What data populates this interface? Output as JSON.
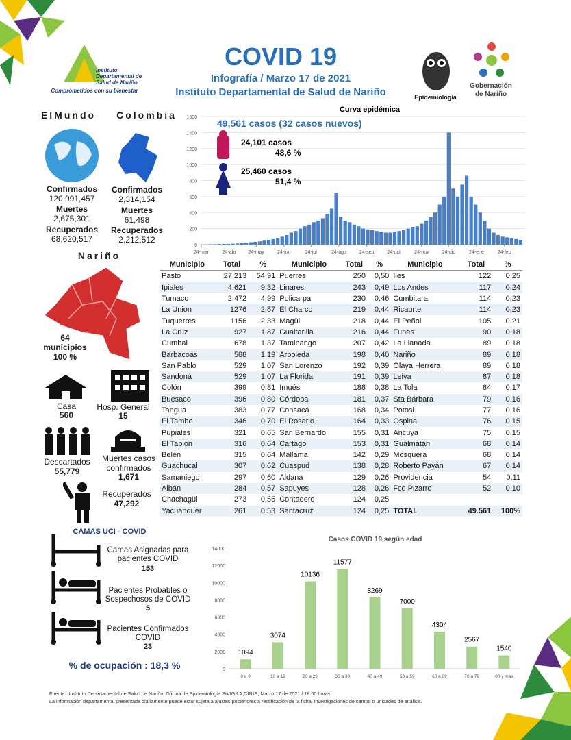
{
  "header": {
    "title": "COVID 19",
    "subtitle": "Infografía / Marzo 17 de 2021",
    "institution": "Instituto Departamental de Salud de Nariño",
    "logo_text": "Instituto Departamental de Salud de Nariño",
    "logo_slogan": "Comprometidos con su bienestar",
    "epi_label": "Epidemiología",
    "gob_label": "Gobernación de Nariño"
  },
  "world": {
    "heading": "ElMundo",
    "stats": [
      {
        "label": "Confirmados",
        "value": "120,991,457"
      },
      {
        "label": "Muertes",
        "value": "2,675,301"
      },
      {
        "label": "Recuperados",
        "value": "68,620,517"
      }
    ]
  },
  "colombia": {
    "heading": "Colombia",
    "stats": [
      {
        "label": "Confirmados",
        "value": "2,314,154"
      },
      {
        "label": "Muertes",
        "value": "61,498"
      },
      {
        "label": "Recuperados",
        "value": "2,212,512"
      }
    ]
  },
  "narino": {
    "heading": "Nariño",
    "count": "64",
    "unit": "municipios",
    "percent": "100 %",
    "stats": [
      {
        "label": "Casa",
        "value": "560"
      },
      {
        "label": "Hosp. General",
        "value": "15"
      },
      {
        "label": "Descartados",
        "value": "55,779"
      },
      {
        "label": "Muertes casos confirmados",
        "value": "1,671"
      },
      {
        "label": "Recuperados",
        "value": "47,292"
      }
    ]
  },
  "table": {
    "header": [
      "Municipio",
      "Total",
      "%"
    ],
    "columns": [
      [
        [
          "Pasto",
          "27.213",
          "54,91"
        ],
        [
          "Ipiales",
          "4.621",
          "9,32"
        ],
        [
          "Tumaco",
          "2.472",
          "4,99"
        ],
        [
          "La Union",
          "1276",
          "2,57"
        ],
        [
          "Tuquerres",
          "1156",
          "2,33"
        ],
        [
          "La Cruz",
          "927",
          "1,87"
        ],
        [
          "Cumbal",
          "678",
          "1,37"
        ],
        [
          "Barbacoas",
          "588",
          "1,19"
        ],
        [
          "San Pablo",
          "529",
          "1,07"
        ],
        [
          "Sandoná",
          "529",
          "1,07"
        ],
        [
          "Colón",
          "399",
          "0,81"
        ],
        [
          "Buesaco",
          "396",
          "0,80"
        ],
        [
          "Tangua",
          "383",
          "0,77"
        ],
        [
          "El Tambo",
          "346",
          "0,70"
        ],
        [
          "Pupiales",
          "321",
          "0,65"
        ],
        [
          "El Tablón",
          "316",
          "0,64"
        ],
        [
          "Belén",
          "315",
          "0,64"
        ],
        [
          "Guachucal",
          "307",
          "0,62"
        ],
        [
          "Samaniego",
          "297",
          "0,60"
        ],
        [
          "Albán",
          "284",
          "0,57"
        ],
        [
          "Chachagüi",
          "273",
          "0,55"
        ],
        [
          "Yacuanquer",
          "261",
          "0,53"
        ]
      ],
      [
        [
          "Puerres",
          "250",
          "0,50"
        ],
        [
          "Linares",
          "243",
          "0,49"
        ],
        [
          "Policarpa",
          "230",
          "0,46"
        ],
        [
          "El Charco",
          "219",
          "0,44"
        ],
        [
          "Magüi",
          "218",
          "0,44"
        ],
        [
          "Guaitarilla",
          "216",
          "0,44"
        ],
        [
          "Taminango",
          "207",
          "0,42"
        ],
        [
          "Arboleda",
          "198",
          "0,40"
        ],
        [
          "San Lorenzo",
          "192",
          "0,39"
        ],
        [
          "La Florida",
          "191",
          "0,39"
        ],
        [
          "Imués",
          "188",
          "0,38"
        ],
        [
          "Córdoba",
          "181",
          "0,37"
        ],
        [
          "Consacá",
          "168",
          "0,34"
        ],
        [
          "El Rosario",
          "164",
          "0,33"
        ],
        [
          "San Bernardo",
          "155",
          "0,31"
        ],
        [
          "Cartago",
          "153",
          "0,31"
        ],
        [
          "Mallama",
          "142",
          "0,29"
        ],
        [
          "Cuaspud",
          "138",
          "0,28"
        ],
        [
          "Aldana",
          "129",
          "0,26"
        ],
        [
          "Sapuyes",
          "128",
          "0,26"
        ],
        [
          "Contadero",
          "124",
          "0,25"
        ],
        [
          "Santacruz",
          "124",
          "0,25"
        ]
      ],
      [
        [
          "Iles",
          "122",
          "0,25"
        ],
        [
          "Los Andes",
          "117",
          "0,24"
        ],
        [
          "Cumbitara",
          "114",
          "0,23"
        ],
        [
          "Ricaurte",
          "114",
          "0,23"
        ],
        [
          "El Peñol",
          "105",
          "0,21"
        ],
        [
          "Funes",
          "90",
          "0,18"
        ],
        [
          "La Llanada",
          "89",
          "0,18"
        ],
        [
          "Nariño",
          "89",
          "0,18"
        ],
        [
          "Olaya Herrera",
          "89",
          "0,18"
        ],
        [
          "Leiva",
          "87",
          "0,18"
        ],
        [
          "La Tola",
          "84",
          "0,17"
        ],
        [
          "Sta Bárbara",
          "79",
          "0,16"
        ],
        [
          "Potosi",
          "77",
          "0,16"
        ],
        [
          "Ospina",
          "76",
          "0,15"
        ],
        [
          "Ancuya",
          "75",
          "0,15"
        ],
        [
          "Gualmatán",
          "68",
          "0,14"
        ],
        [
          "Mosquera",
          "68",
          "0,14"
        ],
        [
          "Roberto Payán",
          "67",
          "0,14"
        ],
        [
          "Providencia",
          "54",
          "0,11"
        ],
        [
          "Fco Pizarro",
          "52",
          "0,10"
        ]
      ]
    ],
    "total": [
      "TOTAL",
      "49.561",
      "100%"
    ]
  },
  "uci": {
    "title": "CAMAS UCI - COVID",
    "items": [
      {
        "label": "Camas Asignadas para pacientes COVID",
        "value": "153"
      },
      {
        "label": "Pacientes Probables o Sospechosos de COVID",
        "value": "5"
      },
      {
        "label": "Pacientes Confirmados COVID",
        "value": "23"
      }
    ],
    "occupancy": "% de ocupación : 18,3 %"
  },
  "chart_data": [
    {
      "type": "bar",
      "title": "Curva epidémica",
      "color": "#4a7fc4",
      "grid": true,
      "annotations": [
        "49,561  casos (32 casos nuevos)",
        "24,101  casos",
        "48,6 %",
        "25,460  casos",
        "51,4 %"
      ],
      "x": [
        0,
        5,
        10,
        15,
        20,
        25,
        30,
        35,
        40,
        45,
        50,
        55,
        60,
        65,
        70,
        75,
        80,
        85,
        90,
        95,
        100,
        105,
        110,
        115,
        120,
        125,
        130,
        135,
        140,
        145,
        150,
        155,
        160,
        165,
        170,
        175,
        180,
        185,
        190,
        195,
        200,
        205,
        210,
        215,
        220,
        225,
        230,
        235,
        240,
        245,
        250,
        255,
        260,
        265,
        270,
        275,
        280,
        285,
        290,
        295,
        300,
        305,
        310,
        315,
        320,
        325,
        330,
        335,
        340,
        345,
        350,
        355
      ],
      "values": [
        2,
        3,
        5,
        5,
        8,
        10,
        10,
        12,
        15,
        20,
        25,
        30,
        35,
        40,
        50,
        60,
        70,
        80,
        100,
        120,
        150,
        170,
        200,
        230,
        250,
        280,
        300,
        330,
        380,
        450,
        650,
        350,
        300,
        280,
        250,
        230,
        200,
        190,
        180,
        170,
        160,
        150,
        150,
        160,
        170,
        180,
        200,
        220,
        230,
        260,
        300,
        350,
        400,
        500,
        600,
        1400,
        700,
        600,
        750,
        860,
        600,
        500,
        400,
        300,
        200,
        150,
        120,
        100,
        90,
        80,
        70,
        60
      ],
      "xlim": [
        0,
        360
      ],
      "xticks": [
        {
          "value": 0,
          "label": "24-mar"
        },
        {
          "value": 31,
          "label": "24-abr"
        },
        {
          "value": 61,
          "label": "24-may"
        },
        {
          "value": 92,
          "label": "24-jun"
        },
        {
          "value": 122,
          "label": "24-jul"
        },
        {
          "value": 153,
          "label": "24-ago"
        },
        {
          "value": 184,
          "label": "24-sep"
        },
        {
          "value": 214,
          "label": "24-oct"
        },
        {
          "value": 245,
          "label": "24-nov"
        },
        {
          "value": 275,
          "label": "24-dic"
        },
        {
          "value": 306,
          "label": "24-ene"
        },
        {
          "value": 337,
          "label": "24-feb"
        }
      ],
      "ylim": [
        0,
        1600
      ],
      "yticks": [
        0,
        200,
        400,
        600,
        800,
        1000,
        1200,
        1400,
        1600
      ]
    },
    {
      "type": "bar",
      "title": "Casos COVID 19  según edad",
      "color": "#a9d18e",
      "grid": false,
      "categories": [
        "0 a 9",
        "10 a 19",
        "20 a 29",
        "30 a 39",
        "40 a 49",
        "50 a 59",
        "60 a 69",
        "70 a 79",
        "80 y mas"
      ],
      "values": [
        1094,
        3074,
        10136,
        11577,
        8269,
        7000,
        4304,
        2567,
        1540
      ],
      "ylim": [
        0,
        14000
      ],
      "yticks": [
        0,
        2000,
        4000,
        6000,
        8000,
        10000,
        12000,
        14000
      ]
    }
  ],
  "footer": [
    "Fuente : Instituto Departamental de Salud de Nariño, Oficina de Epidemiología SIVIGILA,CRUE,  Marzo 17 de 2021 / 18:00  horas.",
    "La información departamental presentada diariamente puede estar sujeta a ajustes posteriores a  rectificación de la ficha, investigaciones de campo o unidades de análisis."
  ]
}
